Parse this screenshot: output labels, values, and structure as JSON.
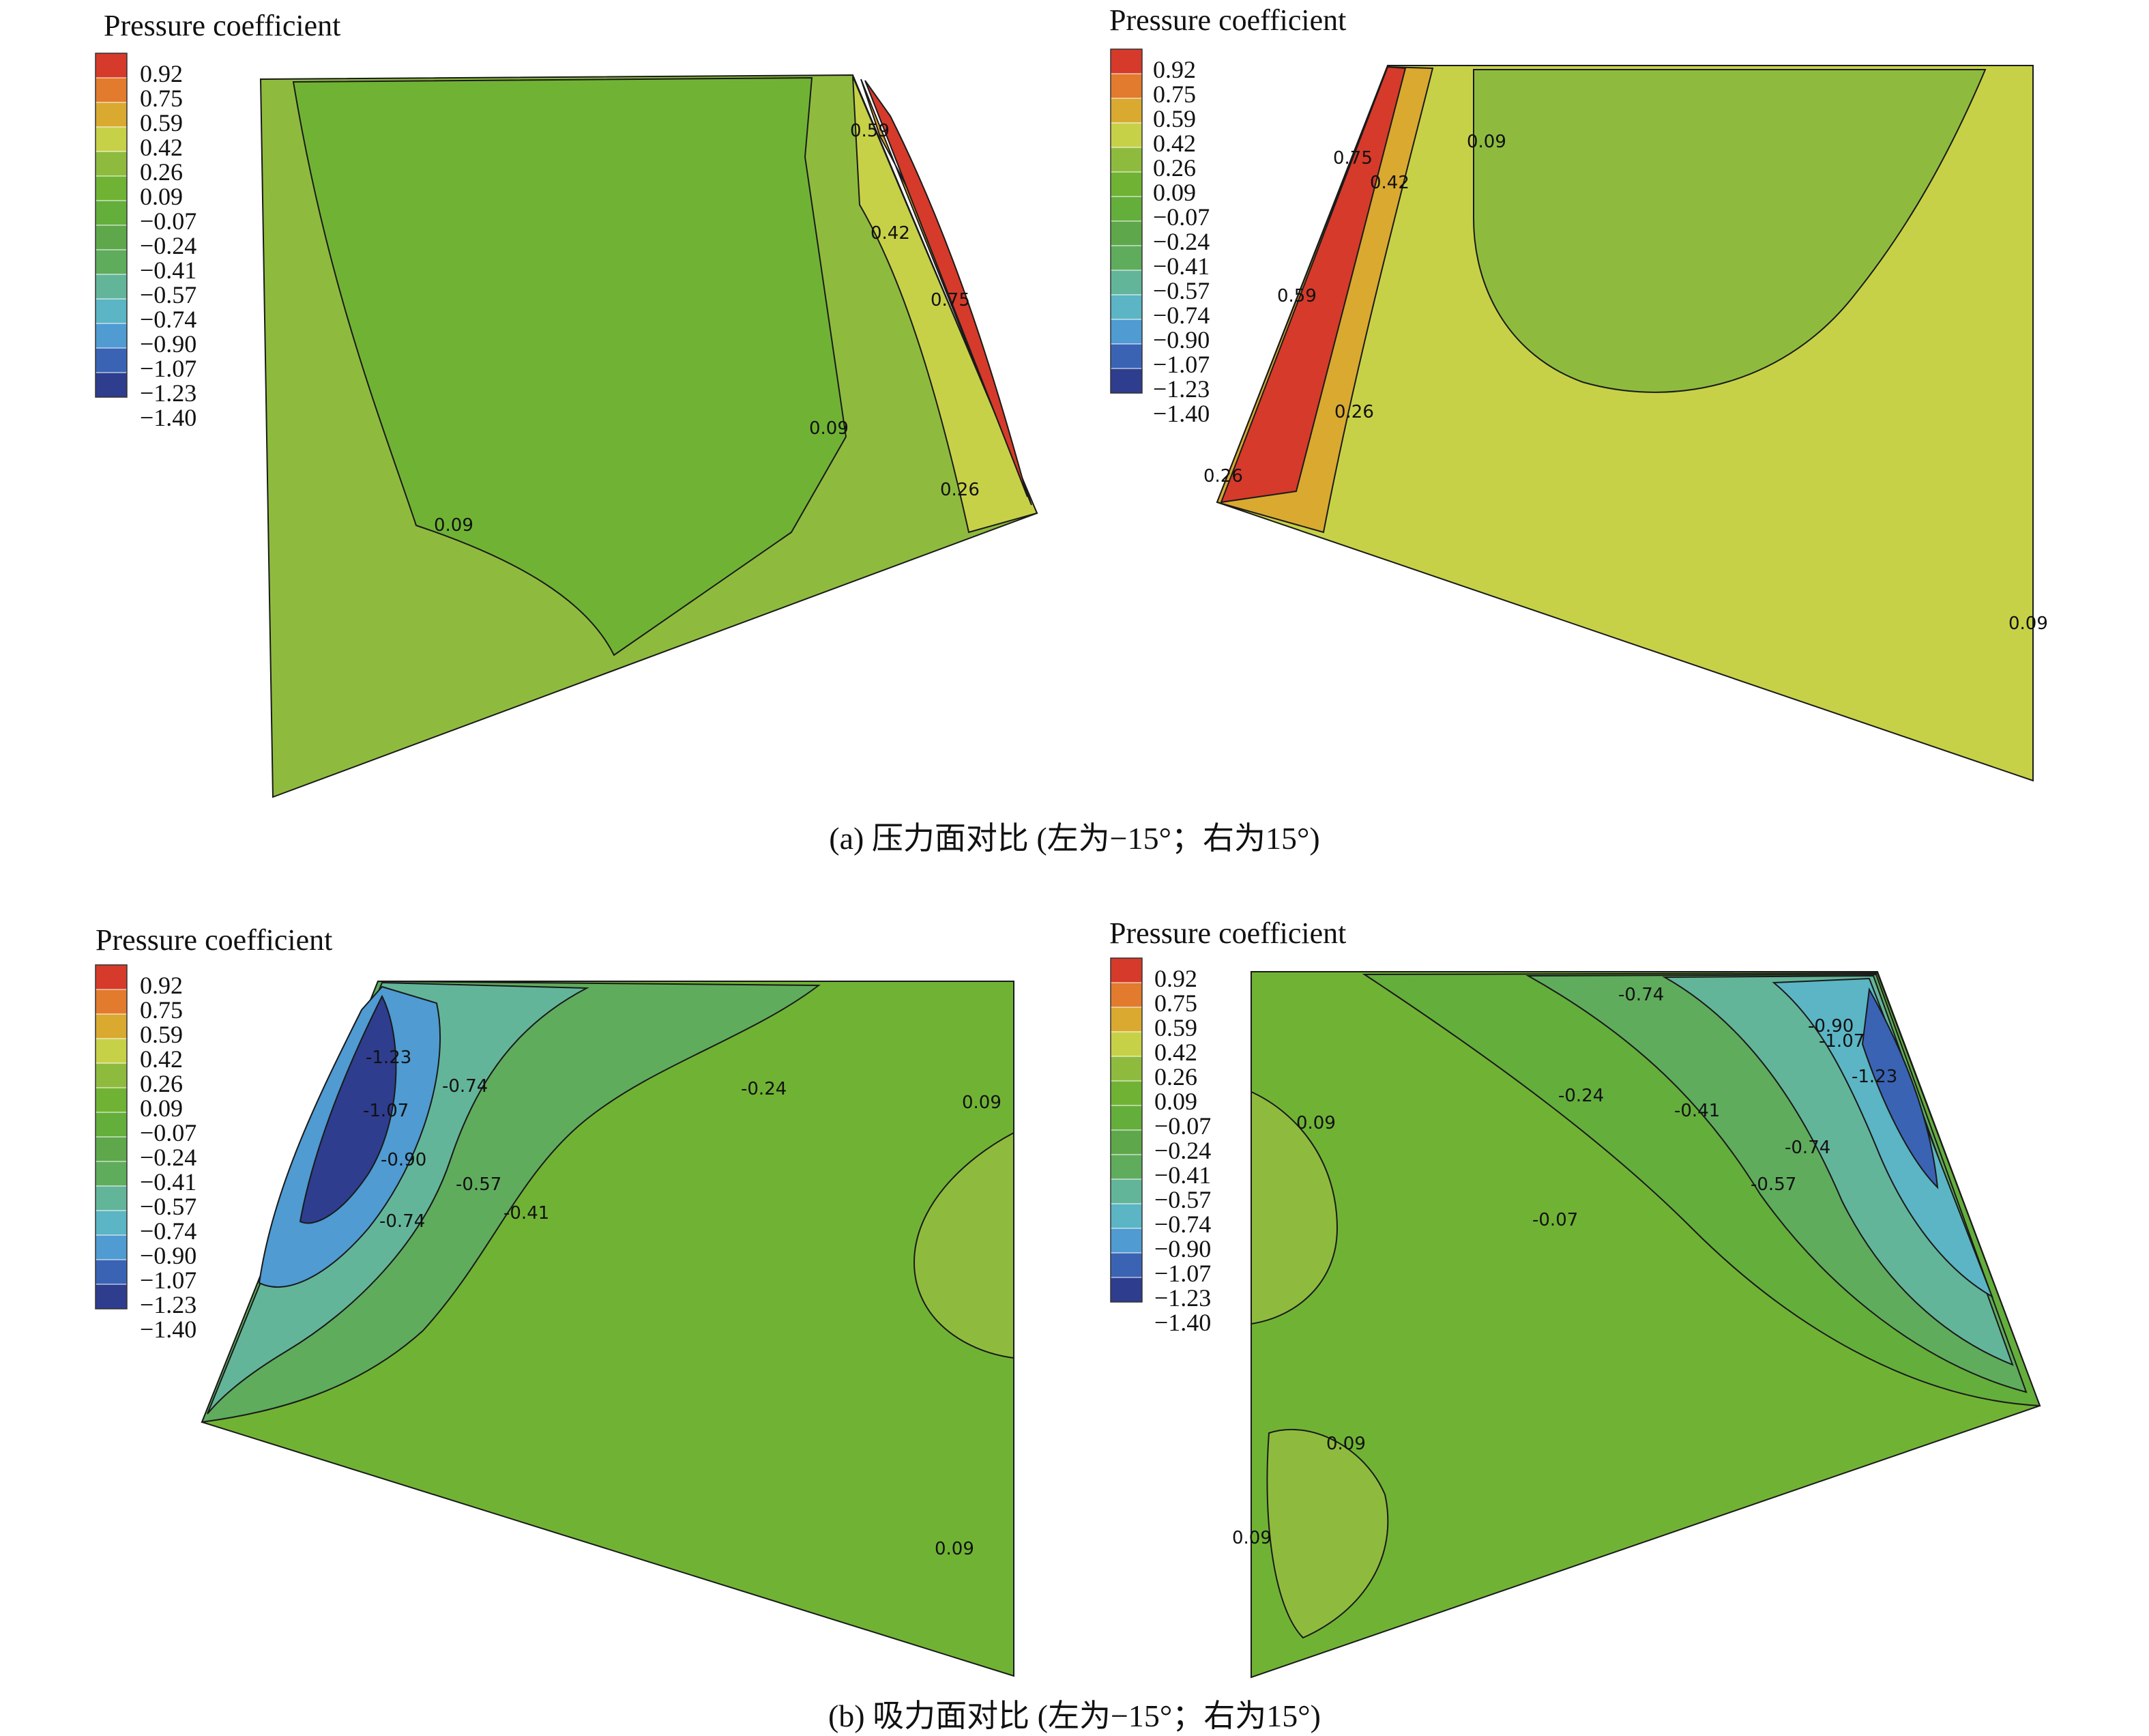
{
  "colors": {
    "scale_hex": [
      "#2e3d8e",
      "#3a63b4",
      "#4f9bd2",
      "#5bb5c4",
      "#63b59a",
      "#5fac5d",
      "#5ea84b",
      "#64ae3c",
      "#70b334",
      "#8ebb3e",
      "#c7d147",
      "#d9a930",
      "#e27b2d",
      "#d63a2a"
    ],
    "contour_line": "#1a1a1a"
  },
  "chart_data": [
    {
      "type": "heatmap",
      "panel": "a-left",
      "title": "Pressure coefficient",
      "legend_ticks": [
        "0.92",
        "0.75",
        "0.59",
        "0.42",
        "0.26",
        "0.09",
        "−0.07",
        "−0.24",
        "−0.41",
        "−0.57",
        "−0.74",
        "−0.90",
        "−1.07",
        "−1.23",
        "−1.40"
      ],
      "contour_labels": [
        "0.59",
        "0.42",
        "0.75",
        "0.09",
        "0.26",
        "0.09"
      ]
    },
    {
      "type": "heatmap",
      "panel": "a-right",
      "title": "Pressure coefficient",
      "legend_ticks": [
        "0.92",
        "0.75",
        "0.59",
        "0.42",
        "0.26",
        "0.09",
        "−0.07",
        "−0.24",
        "−0.41",
        "−0.57",
        "−0.74",
        "−0.90",
        "−1.07",
        "−1.23",
        "−1.40"
      ],
      "contour_labels": [
        "0.75",
        "0.42",
        "0.09",
        "0.59",
        "0.26",
        "0.26",
        "0.09"
      ]
    },
    {
      "type": "heatmap",
      "panel": "b-left",
      "title": "Pressure coefficient",
      "legend_ticks": [
        "0.92",
        "0.75",
        "0.59",
        "0.42",
        "0.26",
        "0.09",
        "−0.07",
        "−0.24",
        "−0.41",
        "−0.57",
        "−0.74",
        "−0.90",
        "−1.07",
        "−1.23",
        "−1.40"
      ],
      "contour_labels": [
        "-1.23",
        "-0.74",
        "-1.07",
        "-0.90",
        "-0.57",
        "-0.74",
        "-0.41",
        "-0.24",
        "0.09",
        "0.09"
      ]
    },
    {
      "type": "heatmap",
      "panel": "b-right",
      "title": "Pressure coefficient",
      "legend_ticks": [
        "0.92",
        "0.75",
        "0.59",
        "0.42",
        "0.26",
        "0.09",
        "−0.07",
        "−0.24",
        "−0.41",
        "−0.57",
        "−0.74",
        "−0.90",
        "−1.07",
        "−1.23",
        "−1.40"
      ],
      "contour_labels": [
        "-0.74",
        "-0.90",
        "-1.07",
        "-1.23",
        "0.09",
        "-0.24",
        "-0.41",
        "-0.74",
        "-0.57",
        "-0.07",
        "0.09",
        "0.09"
      ]
    }
  ],
  "captions": {
    "a": "(a) 压力面对比 (左为−15°；右为15°)",
    "b": "(b) 吸力面对比 (左为−15°；右为15°)"
  }
}
